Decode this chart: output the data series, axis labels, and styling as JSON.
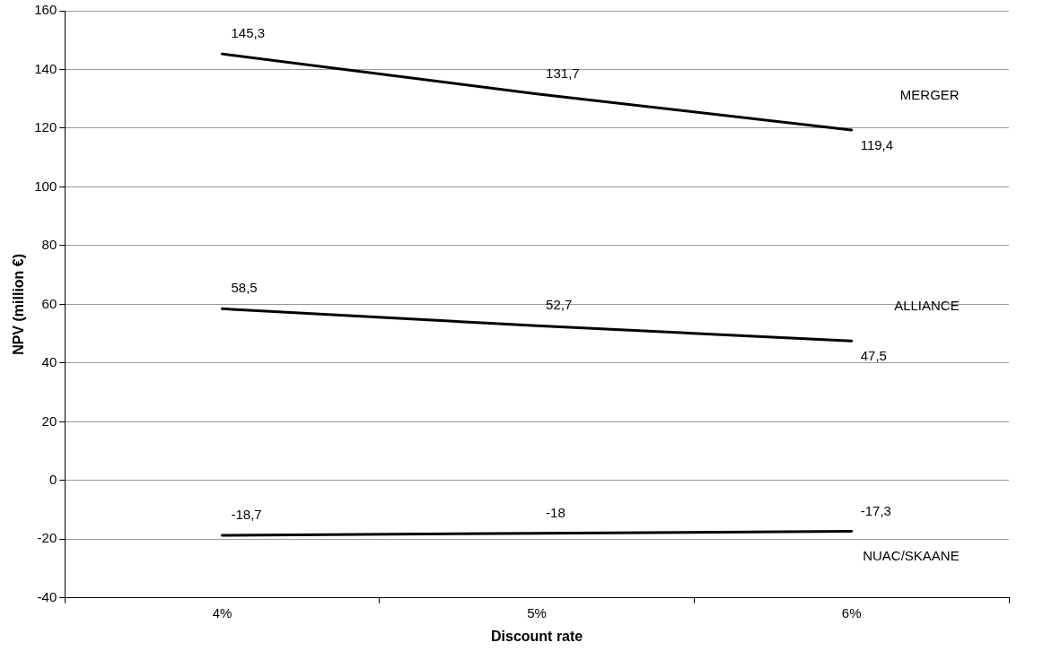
{
  "chart_data": {
    "type": "line",
    "xlabel": "Discount rate",
    "ylabel": "NPV (million €)",
    "categories": [
      "4%",
      "5%",
      "6%"
    ],
    "series": [
      {
        "name": "MERGER",
        "color": "#000000",
        "values": [
          145.3,
          131.7,
          119.4
        ],
        "value_labels": [
          "145,3",
          "131,7",
          "119,4"
        ]
      },
      {
        "name": "ALLIANCE",
        "color": "#000000",
        "values": [
          58.5,
          52.7,
          47.5
        ],
        "value_labels": [
          "58,5",
          "52,7",
          "47,5"
        ]
      },
      {
        "name": "NUAC/SKAANE",
        "color": "#000000",
        "values": [
          -18.7,
          -18,
          -17.3
        ],
        "value_labels": [
          "-18,7",
          "-18",
          "-17,3"
        ]
      }
    ],
    "ylim": [
      -40,
      160
    ],
    "yticks": [
      -40,
      -20,
      0,
      20,
      40,
      60,
      80,
      100,
      120,
      140,
      160
    ],
    "grid": "y",
    "legend": false,
    "marker": "none",
    "line_style": "solid"
  }
}
